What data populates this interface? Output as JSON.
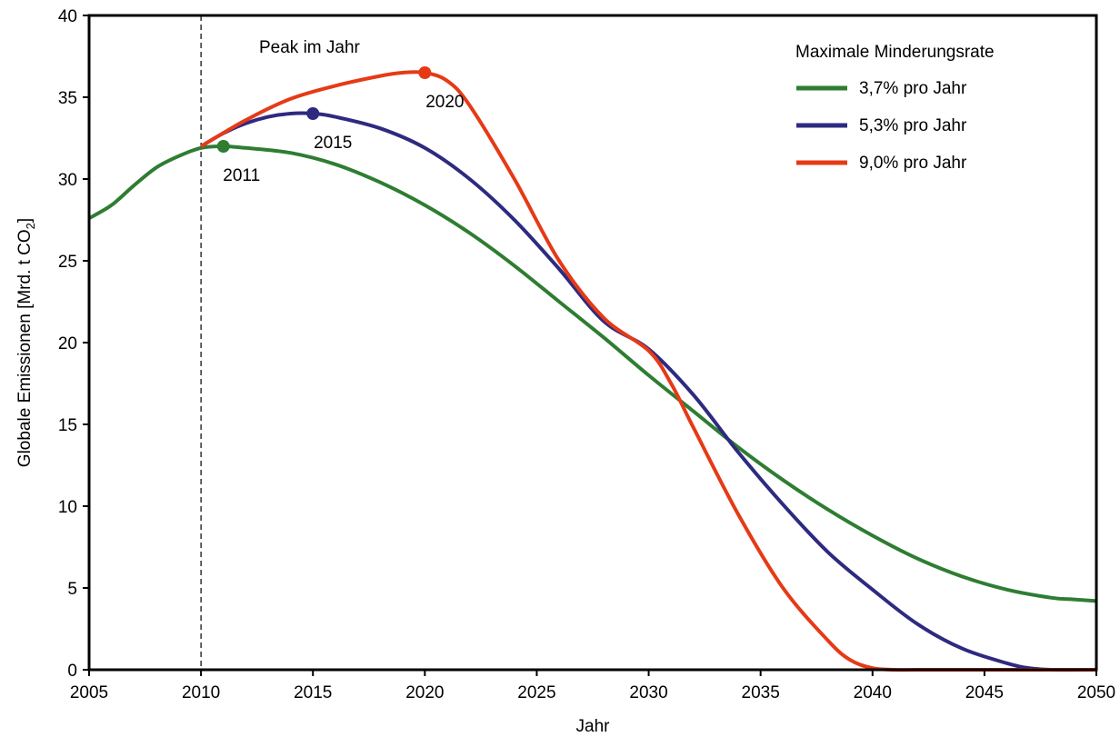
{
  "chart_data": {
    "type": "line",
    "title": "",
    "xlabel": "Jahr",
    "ylabel_main": "Globale Emissionen [Mrd. t CO",
    "ylabel_sub": "2",
    "ylabel_end": "]",
    "xlim": [
      2005,
      2050
    ],
    "ylim": [
      0,
      40
    ],
    "grid": false,
    "x_ticks": [
      2005,
      2010,
      2015,
      2020,
      2025,
      2030,
      2035,
      2040,
      2045,
      2050
    ],
    "y_ticks": [
      0,
      5,
      10,
      15,
      20,
      25,
      30,
      35,
      40
    ],
    "reference_line_x": 2010,
    "annotation": "Peak im Jahr",
    "legend_title": "Maximale Minderungsrate",
    "legend_position": "top-right",
    "series": [
      {
        "name": "3,7% pro Jahr",
        "color": "#2e7d32",
        "peak_x": 2011,
        "peak_y": 32.0,
        "peak_label": "2011",
        "x": [
          2005,
          2006,
          2007,
          2008,
          2009,
          2010,
          2011,
          2012,
          2014,
          2016,
          2018,
          2020,
          2022,
          2024,
          2026,
          2028,
          2030,
          2032,
          2034,
          2036,
          2038,
          2040,
          2042,
          2044,
          2046,
          2048,
          2049,
          2050
        ],
        "values": [
          27.6,
          28.4,
          29.6,
          30.7,
          31.4,
          31.9,
          32.0,
          31.9,
          31.6,
          30.9,
          29.8,
          28.4,
          26.7,
          24.7,
          22.5,
          20.3,
          18.0,
          15.8,
          13.6,
          11.6,
          9.8,
          8.2,
          6.8,
          5.7,
          4.9,
          4.4,
          4.3,
          4.2
        ]
      },
      {
        "name": "5,3% pro Jahr",
        "color": "#2e2a80",
        "peak_x": 2015,
        "peak_y": 34.0,
        "peak_label": "2015",
        "x": [
          2010,
          2011,
          2012,
          2013,
          2014,
          2015,
          2016,
          2018,
          2020,
          2022,
          2024,
          2026,
          2028,
          2030,
          2032,
          2034,
          2036,
          2038,
          2040,
          2042,
          2044,
          2046,
          2047,
          2048,
          2050
        ],
        "values": [
          32.0,
          32.8,
          33.4,
          33.8,
          34.0,
          34.0,
          33.8,
          33.1,
          31.9,
          30.0,
          27.5,
          24.5,
          21.3,
          19.6,
          16.8,
          13.3,
          10.1,
          7.2,
          4.9,
          2.8,
          1.3,
          0.4,
          0.1,
          0.0,
          0.0
        ]
      },
      {
        "name": "9,0% pro Jahr",
        "color": "#e63a16",
        "peak_x": 2020,
        "peak_y": 36.5,
        "peak_label": "2020",
        "x": [
          2010,
          2012,
          2014,
          2016,
          2018,
          2019,
          2020,
          2021,
          2022,
          2024,
          2026,
          2028,
          2030,
          2031,
          2032,
          2034,
          2036,
          2038,
          2039,
          2040,
          2041,
          2042,
          2045,
          2050
        ],
        "values": [
          32.0,
          33.6,
          34.9,
          35.7,
          36.3,
          36.5,
          36.5,
          36.0,
          34.5,
          30.0,
          25.0,
          21.5,
          19.5,
          17.5,
          14.8,
          9.5,
          5.0,
          1.8,
          0.6,
          0.1,
          0.0,
          0.0,
          0.0,
          0.0
        ]
      }
    ]
  }
}
